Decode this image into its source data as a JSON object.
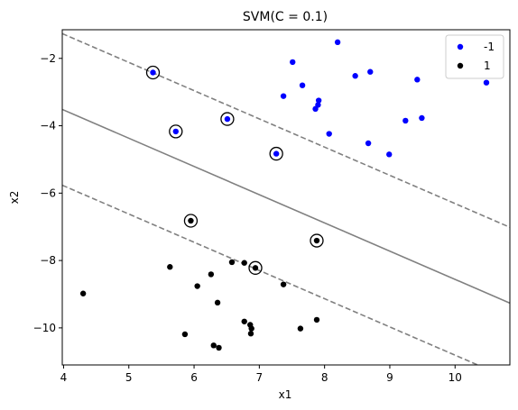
{
  "chart_data": {
    "type": "scatter",
    "title": "SVM(C = 0.1)",
    "xlabel": "x1",
    "ylabel": "x2",
    "xlim": [
      3.98,
      10.84
    ],
    "ylim": [
      -11.1,
      -1.15
    ],
    "xticks": [
      4,
      5,
      6,
      7,
      8,
      9,
      10
    ],
    "yticks": [
      -10,
      -8,
      -6,
      -4,
      -2
    ],
    "grid": false,
    "legend_position": "top-right",
    "series": [
      {
        "name": "-1",
        "color": "#0000ff",
        "points": [
          [
            5.37,
            -2.42
          ],
          [
            7.51,
            -2.11
          ],
          [
            8.2,
            -1.52
          ],
          [
            7.66,
            -2.8
          ],
          [
            7.37,
            -3.12
          ],
          [
            7.91,
            -3.25
          ],
          [
            7.9,
            -3.38
          ],
          [
            7.86,
            -3.5
          ],
          [
            8.47,
            -2.52
          ],
          [
            8.7,
            -2.4
          ],
          [
            9.42,
            -2.63
          ],
          [
            10.48,
            -2.72
          ],
          [
            8.07,
            -4.24
          ],
          [
            9.24,
            -3.85
          ],
          [
            9.49,
            -3.77
          ],
          [
            8.67,
            -4.52
          ],
          [
            8.99,
            -4.85
          ],
          [
            5.72,
            -4.17
          ],
          [
            6.51,
            -3.8
          ],
          [
            7.26,
            -4.83
          ]
        ]
      },
      {
        "name": "1",
        "color": "#000000",
        "points": [
          [
            4.3,
            -8.98
          ],
          [
            5.63,
            -8.19
          ],
          [
            5.95,
            -6.82
          ],
          [
            6.05,
            -8.76
          ],
          [
            6.26,
            -8.41
          ],
          [
            6.36,
            -9.25
          ],
          [
            6.58,
            -8.05
          ],
          [
            6.77,
            -8.07
          ],
          [
            6.94,
            -8.22
          ],
          [
            7.37,
            -8.71
          ],
          [
            7.88,
            -7.41
          ],
          [
            6.77,
            -9.81
          ],
          [
            6.86,
            -9.91
          ],
          [
            6.88,
            -10.02
          ],
          [
            6.87,
            -10.17
          ],
          [
            5.86,
            -10.19
          ],
          [
            6.3,
            -10.52
          ],
          [
            6.38,
            -10.59
          ],
          [
            7.63,
            -10.02
          ],
          [
            7.88,
            -9.76
          ]
        ]
      }
    ],
    "support_vectors": [
      [
        5.37,
        -2.42
      ],
      [
        5.72,
        -4.17
      ],
      [
        6.51,
        -3.8
      ],
      [
        7.26,
        -4.83
      ],
      [
        5.95,
        -6.82
      ],
      [
        7.88,
        -7.41
      ],
      [
        6.94,
        -8.22
      ]
    ],
    "decision_boundary": {
      "slope": -0.838,
      "intercept": -0.18,
      "color": "#808080"
    },
    "margins": [
      {
        "slope": -0.838,
        "intercept": 2.07,
        "style": "dashed",
        "color": "#808080"
      },
      {
        "slope": -0.838,
        "intercept": -2.43,
        "style": "dashed",
        "color": "#808080"
      }
    ]
  }
}
